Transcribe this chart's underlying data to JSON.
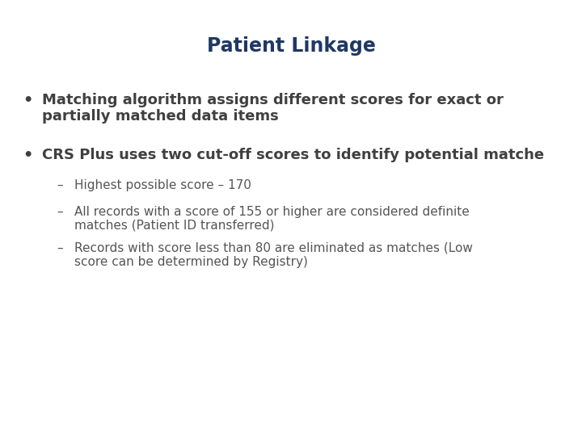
{
  "title": "Patient Linkage",
  "title_color": "#1F3864",
  "title_fontsize": 17,
  "background_color": "#ffffff",
  "bullet1_line1": "Matching algorithm assigns different scores for exact or",
  "bullet1_line2": "partially matched data items",
  "bullet2": "CRS Plus uses two cut-off scores to identify potential matche",
  "sub1": "Highest possible score – 170",
  "sub2_line1": "All records with a score of 155 or higher are considered definite",
  "sub2_line2": "matches (Patient ID transferred)",
  "sub3_line1": "Records with score less than 80 are eliminated as matches (Low",
  "sub3_line2": "score can be determined by Registry)",
  "bullet_color": "#404040",
  "bullet_bold_fontsize": 13,
  "sub_fontsize": 11,
  "sub_color": "#555555"
}
